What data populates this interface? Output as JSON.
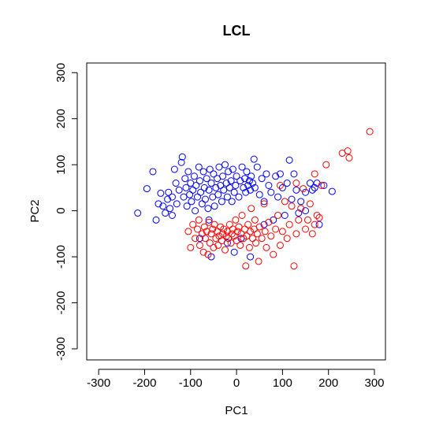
{
  "chart_data": {
    "type": "scatter",
    "title": "LCL",
    "xlabel": "PC1",
    "ylabel": "PC2",
    "xlim": [
      -326,
      324
    ],
    "ylim": [
      -324,
      321
    ],
    "xticks": [
      -300,
      -200,
      -100,
      0,
      100,
      200,
      300
    ],
    "yticks": [
      -300,
      -200,
      -100,
      0,
      100,
      200,
      300
    ],
    "series": [
      {
        "color": "#0000ff",
        "x": [
          -215,
          -195,
          -182,
          -175,
          -170,
          -165,
          -160,
          -155,
          -150,
          -148,
          -145,
          -140,
          -135,
          -132,
          -130,
          -125,
          -120,
          -118,
          -115,
          -112,
          -110,
          -108,
          -105,
          -102,
          -100,
          -98,
          -95,
          -92,
          -90,
          -88,
          -85,
          -82,
          -80,
          -78,
          -75,
          -72,
          -70,
          -68,
          -65,
          -62,
          -60,
          -58,
          -55,
          -52,
          -50,
          -48,
          -45,
          -42,
          -40,
          -38,
          -35,
          -32,
          -30,
          -28,
          -25,
          -22,
          -20,
          -18,
          -15,
          -12,
          -10,
          -8,
          -5,
          -2,
          0,
          5,
          8,
          10,
          12,
          15,
          18,
          20,
          22,
          25,
          28,
          30,
          32,
          35,
          38,
          40,
          45,
          50,
          55,
          60,
          65,
          70,
          75,
          80,
          85,
          90,
          95,
          100,
          105,
          110,
          115,
          120,
          125,
          130,
          135,
          140,
          150,
          160,
          165,
          170,
          175,
          180,
          190,
          208,
          -140,
          -60,
          -20,
          -5,
          30,
          -55,
          -80,
          60,
          150
        ],
        "y": [
          -5,
          48,
          85,
          -20,
          15,
          38,
          10,
          -5,
          25,
          40,
          5,
          30,
          90,
          60,
          15,
          45,
          105,
          117,
          30,
          70,
          50,
          10,
          85,
          35,
          60,
          20,
          45,
          75,
          0,
          55,
          30,
          95,
          65,
          40,
          15,
          85,
          50,
          25,
          70,
          5,
          45,
          90,
          60,
          30,
          80,
          10,
          50,
          70,
          35,
          95,
          55,
          20,
          75,
          45,
          100,
          60,
          30,
          85,
          50,
          65,
          20,
          90,
          40,
          55,
          75,
          30,
          65,
          -60,
          95,
          50,
          70,
          40,
          85,
          55,
          65,
          45,
          75,
          60,
          112,
          50,
          95,
          35,
          70,
          20,
          80,
          55,
          40,
          -20,
          75,
          30,
          80,
          50,
          -10,
          60,
          110,
          25,
          80,
          45,
          -5,
          20,
          40,
          60,
          45,
          50,
          60,
          -30,
          55,
          42,
          -10,
          -20,
          -70,
          -90,
          -100,
          -100,
          -60,
          -30,
          0
        ]
      },
      {
        "color": "#ff0000",
        "x": [
          -105,
          -100,
          -95,
          -90,
          -85,
          -82,
          -80,
          -75,
          -72,
          -70,
          -68,
          -65,
          -62,
          -60,
          -58,
          -55,
          -52,
          -50,
          -48,
          -45,
          -42,
          -40,
          -38,
          -35,
          -32,
          -30,
          -28,
          -25,
          -22,
          -20,
          -18,
          -15,
          -12,
          -10,
          -8,
          -5,
          -2,
          0,
          2,
          5,
          8,
          10,
          12,
          15,
          18,
          20,
          22,
          25,
          28,
          30,
          32,
          35,
          38,
          40,
          42,
          45,
          48,
          50,
          55,
          60,
          62,
          65,
          70,
          75,
          80,
          85,
          90,
          95,
          100,
          105,
          110,
          115,
          120,
          125,
          130,
          135,
          140,
          145,
          150,
          155,
          160,
          165,
          170,
          175,
          180,
          185,
          195,
          230,
          242,
          245,
          290,
          130,
          170,
          95
        ],
        "y": [
          -45,
          -80,
          -30,
          -60,
          -40,
          -20,
          -75,
          -50,
          -90,
          -35,
          -60,
          -45,
          -95,
          -25,
          -70,
          -50,
          -40,
          -80,
          -30,
          -60,
          -45,
          -75,
          -55,
          -35,
          -65,
          -50,
          -40,
          -85,
          -55,
          -45,
          -60,
          -30,
          -70,
          -50,
          -40,
          -55,
          -20,
          -65,
          -45,
          -35,
          -75,
          -50,
          -10,
          -60,
          -40,
          -120,
          -55,
          -30,
          -80,
          -45,
          5,
          -60,
          -40,
          -20,
          -70,
          -50,
          -110,
          -35,
          -60,
          15,
          -45,
          -80,
          -25,
          -55,
          -95,
          -40,
          -10,
          -75,
          -45,
          20,
          -60,
          -30,
          10,
          -120,
          -50,
          -20,
          5,
          48,
          -40,
          -20,
          15,
          -50,
          -30,
          -10,
          -15,
          55,
          100,
          125,
          130,
          115,
          172,
          60,
          80,
          55
        ]
      }
    ]
  }
}
